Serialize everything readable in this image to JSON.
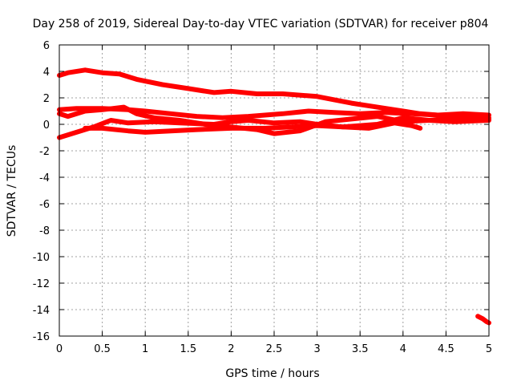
{
  "chart_data": {
    "type": "line",
    "title": "Day 258 of 2019, Sidereal Day-to-day VTEC variation (SDTVAR) for receiver p804",
    "xlabel": "GPS time / hours",
    "ylabel": "SDTVAR / TECUs",
    "xlim": [
      0,
      5
    ],
    "ylim": [
      -16,
      6
    ],
    "grid": true,
    "x_ticks": [
      0,
      0.5,
      1,
      1.5,
      2,
      2.5,
      3,
      3.5,
      4,
      4.5,
      5
    ],
    "x_tick_labels": [
      "0",
      "0.5",
      "1",
      "1.5",
      "2",
      "2.5",
      "3",
      "3.5",
      "4",
      "4.5",
      "5"
    ],
    "y_ticks": [
      6,
      4,
      2,
      0,
      -2,
      -4,
      -6,
      -8,
      -10,
      -12,
      -14,
      -16
    ],
    "y_tick_labels": [
      "6",
      "4",
      "2",
      "0",
      "-2",
      "-4",
      "-6",
      "-8",
      "-10",
      "-12",
      "-14",
      "-16"
    ],
    "line_color": "#ff0000",
    "series": [
      {
        "name": "track-1",
        "x": [
          0,
          0.1,
          0.3,
          0.5,
          0.7,
          0.9,
          1.2,
          1.5,
          1.8,
          2.0,
          2.3,
          2.6,
          3.0,
          3.4,
          3.8,
          4.2,
          4.6,
          5.0
        ],
        "y": [
          3.7,
          3.9,
          4.1,
          3.9,
          3.8,
          3.4,
          3.0,
          2.7,
          2.4,
          2.5,
          2.3,
          2.3,
          2.1,
          1.6,
          1.2,
          0.8,
          0.6,
          0.4
        ]
      },
      {
        "name": "track-2",
        "x": [
          0,
          0.2,
          0.5,
          0.8,
          1.0,
          1.3,
          1.6,
          1.9,
          2.2,
          2.6,
          2.9,
          3.2,
          3.5,
          3.8,
          4.1,
          4.4,
          4.7,
          5.0
        ],
        "y": [
          1.1,
          1.2,
          1.2,
          1.1,
          1.0,
          0.8,
          0.6,
          0.5,
          0.6,
          0.8,
          1.0,
          0.9,
          0.8,
          0.9,
          0.8,
          0.7,
          0.8,
          0.7
        ]
      },
      {
        "name": "track-3",
        "x": [
          0,
          0.1,
          0.3,
          0.5,
          0.75,
          0.9,
          1.1,
          1.4,
          1.7,
          2.0,
          2.3,
          2.5,
          2.8,
          3.1,
          3.4,
          3.7,
          4.0,
          4.3,
          4.6,
          5.0
        ],
        "y": [
          0.8,
          0.6,
          1.0,
          1.1,
          1.3,
          0.8,
          0.5,
          0.3,
          0.0,
          -0.2,
          -0.4,
          -0.7,
          -0.5,
          0.2,
          0.4,
          0.6,
          0.2,
          0.3,
          0.4,
          0.5
        ]
      },
      {
        "name": "track-4",
        "x": [
          0,
          0.2,
          0.4,
          0.6,
          0.8,
          1.1,
          1.4,
          1.8,
          2.0,
          2.2,
          2.5,
          2.8,
          3.0,
          3.3,
          3.7,
          4.0,
          4.3,
          4.6,
          5.0
        ],
        "y": [
          -1.0,
          -0.6,
          -0.2,
          0.3,
          0.1,
          0.2,
          0.1,
          0.0,
          0.2,
          0.3,
          0.1,
          0.2,
          0.0,
          -0.2,
          0.0,
          0.5,
          0.3,
          0.2,
          0.3
        ]
      },
      {
        "name": "track-5",
        "x": [
          0.3,
          0.5,
          0.8,
          1.0,
          1.3,
          1.6,
          2.0,
          2.4,
          2.7,
          3.0,
          3.3,
          3.6,
          3.9,
          4.1,
          4.2
        ],
        "y": [
          -0.3,
          -0.3,
          -0.5,
          -0.6,
          -0.5,
          -0.4,
          -0.3,
          -0.3,
          -0.2,
          -0.1,
          -0.2,
          -0.3,
          0.1,
          -0.1,
          -0.3
        ]
      },
      {
        "name": "track-6",
        "x": [
          4.87,
          4.93,
          4.97,
          5.0
        ],
        "y": [
          -14.5,
          -14.7,
          -14.9,
          -15.0
        ]
      }
    ]
  }
}
